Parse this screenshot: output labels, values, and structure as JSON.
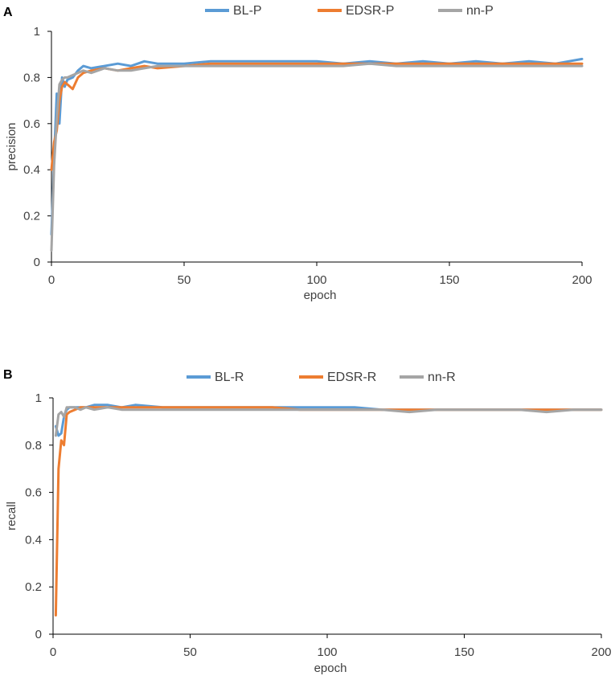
{
  "chart_data": [
    {
      "panel": "A",
      "type": "line",
      "xlabel": "epoch",
      "ylabel": "precision",
      "xlim": [
        0,
        200
      ],
      "ylim": [
        0,
        1
      ],
      "x_ticks": [
        "0",
        "50",
        "100",
        "150",
        "200"
      ],
      "y_ticks": [
        "0",
        "0.2",
        "0.4",
        "0.6",
        "0.8",
        "1"
      ],
      "legend_position": "top-center",
      "x": [
        0,
        1,
        2,
        3,
        4,
        5,
        6,
        8,
        10,
        12,
        15,
        20,
        25,
        30,
        35,
        40,
        50,
        60,
        70,
        80,
        90,
        100,
        110,
        120,
        130,
        140,
        150,
        160,
        170,
        180,
        190,
        200
      ],
      "series": [
        {
          "name": "BL-P",
          "color": "#5B9BD5",
          "values": [
            0.12,
            0.45,
            0.73,
            0.6,
            0.8,
            0.76,
            0.79,
            0.8,
            0.83,
            0.85,
            0.84,
            0.85,
            0.86,
            0.85,
            0.87,
            0.86,
            0.86,
            0.87,
            0.87,
            0.87,
            0.87,
            0.87,
            0.86,
            0.87,
            0.86,
            0.87,
            0.86,
            0.87,
            0.86,
            0.87,
            0.86,
            0.88
          ]
        },
        {
          "name": "EDSR-P",
          "color": "#ED7D31",
          "values": [
            0.4,
            0.52,
            0.57,
            0.7,
            0.76,
            0.78,
            0.77,
            0.75,
            0.8,
            0.82,
            0.83,
            0.84,
            0.83,
            0.84,
            0.85,
            0.84,
            0.85,
            0.86,
            0.86,
            0.86,
            0.86,
            0.86,
            0.86,
            0.86,
            0.86,
            0.86,
            0.86,
            0.86,
            0.86,
            0.86,
            0.86,
            0.86
          ]
        },
        {
          "name": "nn-P",
          "color": "#A5A5A5",
          "values": [
            0.05,
            0.42,
            0.62,
            0.77,
            0.79,
            0.8,
            0.8,
            0.81,
            0.82,
            0.83,
            0.82,
            0.84,
            0.83,
            0.83,
            0.84,
            0.85,
            0.85,
            0.85,
            0.85,
            0.85,
            0.85,
            0.85,
            0.85,
            0.86,
            0.85,
            0.85,
            0.85,
            0.85,
            0.85,
            0.85,
            0.85,
            0.85
          ]
        }
      ]
    },
    {
      "panel": "B",
      "type": "line",
      "xlabel": "epoch",
      "ylabel": "recall",
      "xlim": [
        0,
        200
      ],
      "ylim": [
        0,
        1
      ],
      "x_ticks": [
        "0",
        "50",
        "100",
        "150",
        "200"
      ],
      "y_ticks": [
        "0",
        "0.2",
        "0.4",
        "0.6",
        "0.8",
        "1"
      ],
      "legend_position": "top-center",
      "x": [
        1,
        2,
        3,
        4,
        5,
        6,
        8,
        10,
        12,
        15,
        20,
        25,
        30,
        40,
        50,
        60,
        70,
        80,
        90,
        100,
        110,
        120,
        130,
        140,
        150,
        160,
        170,
        180,
        190,
        200
      ],
      "series": [
        {
          "name": "BL-R",
          "color": "#5B9BD5",
          "values": [
            0.88,
            0.84,
            0.85,
            0.92,
            0.95,
            0.96,
            0.96,
            0.96,
            0.96,
            0.97,
            0.97,
            0.96,
            0.97,
            0.96,
            0.96,
            0.96,
            0.96,
            0.96,
            0.96,
            0.96,
            0.96,
            0.95,
            0.95,
            0.95,
            0.95,
            0.95,
            0.95,
            0.95,
            0.95,
            0.95
          ]
        },
        {
          "name": "EDSR-R",
          "color": "#ED7D31",
          "values": [
            0.08,
            0.7,
            0.82,
            0.8,
            0.93,
            0.94,
            0.95,
            0.96,
            0.96,
            0.96,
            0.96,
            0.96,
            0.96,
            0.96,
            0.96,
            0.96,
            0.96,
            0.96,
            0.95,
            0.95,
            0.95,
            0.95,
            0.95,
            0.95,
            0.95,
            0.95,
            0.95,
            0.95,
            0.95,
            0.95
          ]
        },
        {
          "name": "nn-R",
          "color": "#A5A5A5",
          "values": [
            0.84,
            0.93,
            0.94,
            0.92,
            0.96,
            0.96,
            0.96,
            0.95,
            0.96,
            0.95,
            0.96,
            0.95,
            0.95,
            0.95,
            0.95,
            0.95,
            0.95,
            0.95,
            0.95,
            0.95,
            0.95,
            0.95,
            0.94,
            0.95,
            0.95,
            0.95,
            0.95,
            0.94,
            0.95,
            0.95
          ]
        }
      ]
    }
  ]
}
